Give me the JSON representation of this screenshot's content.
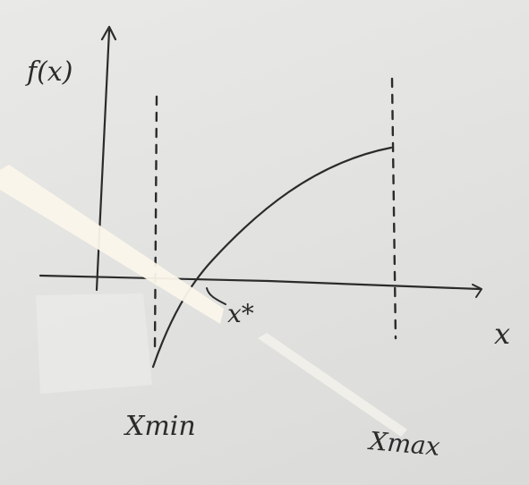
{
  "labels": {
    "y_axis": "f(x)",
    "x_axis": "x",
    "root": "x*",
    "x_min": "Xmin",
    "x_max": "Xmax"
  },
  "colors": {
    "ink": "#2b2b2b",
    "board": "#e3e3e1",
    "glare": "#fbf6ea"
  }
}
